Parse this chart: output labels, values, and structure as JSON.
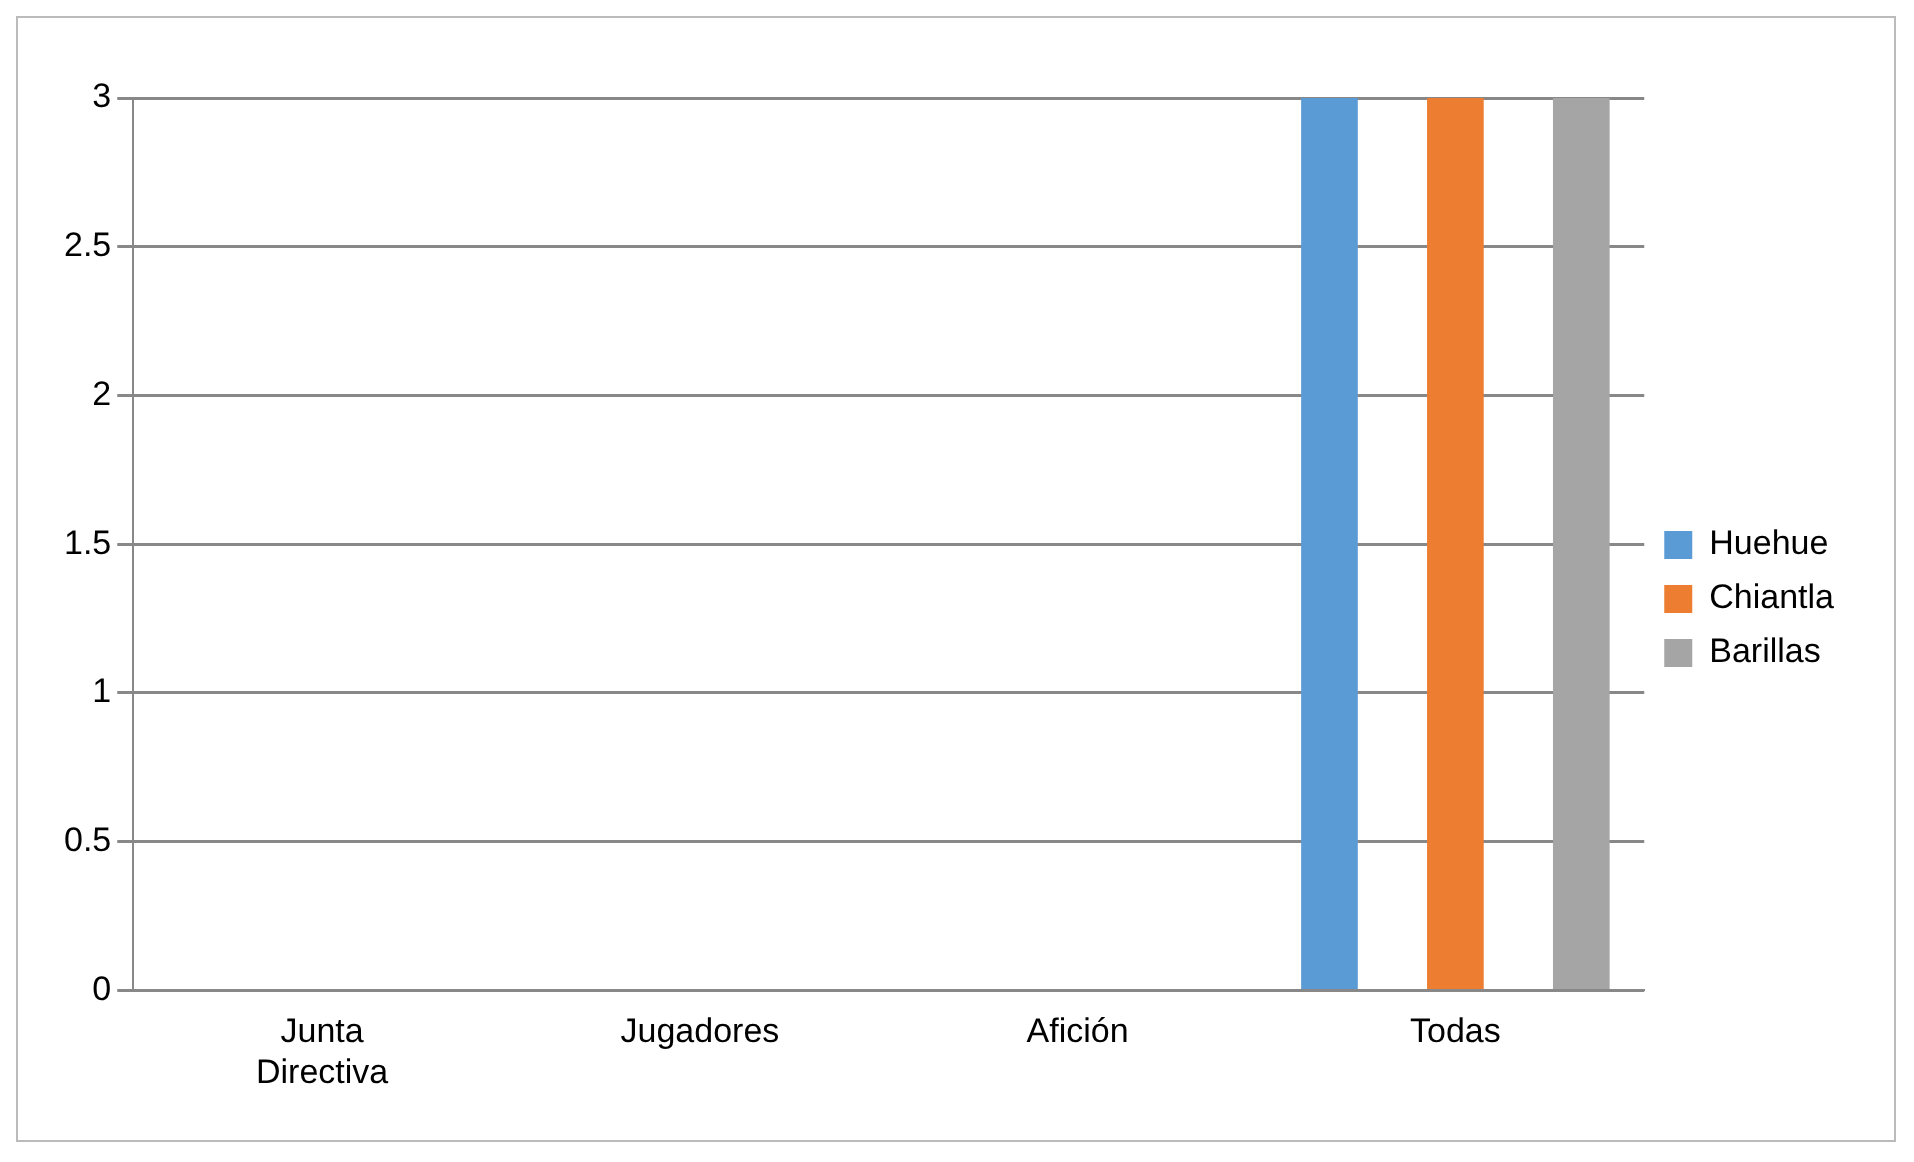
{
  "chart_data": {
    "type": "bar",
    "categories": [
      "Junta Directiva",
      "Jugadores",
      "Afición",
      "Todas"
    ],
    "series": [
      {
        "name": "Huehue",
        "color": "#5b9bd5",
        "values": [
          0,
          0,
          0,
          3
        ]
      },
      {
        "name": "Chiantla",
        "color": "#ed7d31",
        "values": [
          0,
          0,
          0,
          3
        ]
      },
      {
        "name": "Barillas",
        "color": "#a5a5a5",
        "values": [
          0,
          0,
          0,
          3
        ]
      }
    ],
    "ylim": [
      0,
      3
    ],
    "yticks": [
      0,
      0.5,
      1,
      1.5,
      2,
      2.5,
      3
    ],
    "grid": "y",
    "legend": "right"
  }
}
